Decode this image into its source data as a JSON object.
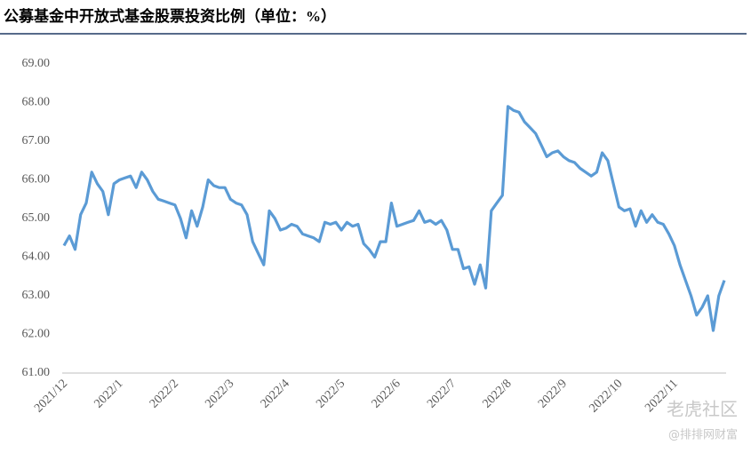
{
  "chart_data": {
    "type": "line",
    "title": "公募基金中开放式基金股票投资比例（单位：%）",
    "categories": [
      "2021/12",
      null,
      null,
      null,
      null,
      null,
      null,
      null,
      null,
      null,
      "2022/1",
      null,
      null,
      null,
      null,
      null,
      null,
      null,
      null,
      null,
      "2022/2",
      null,
      null,
      null,
      null,
      null,
      null,
      null,
      null,
      null,
      "2022/3",
      null,
      null,
      null,
      null,
      null,
      null,
      null,
      null,
      null,
      "2022/4",
      null,
      null,
      null,
      null,
      null,
      null,
      null,
      null,
      null,
      "2022/5",
      null,
      null,
      null,
      null,
      null,
      null,
      null,
      null,
      null,
      "2022/6",
      null,
      null,
      null,
      null,
      null,
      null,
      null,
      null,
      null,
      "2022/7",
      null,
      null,
      null,
      null,
      null,
      null,
      null,
      null,
      null,
      "2022/8",
      null,
      null,
      null,
      null,
      null,
      null,
      null,
      null,
      null,
      "2022/9",
      null,
      null,
      null,
      null,
      null,
      null,
      null,
      null,
      null,
      "2022/10",
      null,
      null,
      null,
      null,
      null,
      null,
      null,
      null,
      null,
      "2022/11",
      null,
      null,
      null,
      null,
      null,
      null,
      null,
      null,
      null
    ],
    "series": [
      {
        "color": "#5b9bd5",
        "values": [
          64.3,
          64.55,
          64.2,
          65.1,
          65.4,
          66.2,
          65.9,
          65.7,
          65.1,
          65.9,
          66.0,
          66.05,
          66.1,
          65.8,
          66.2,
          66.0,
          65.7,
          65.5,
          65.45,
          65.4,
          65.35,
          65.0,
          64.5,
          65.2,
          64.8,
          65.3,
          66.0,
          65.85,
          65.8,
          65.8,
          65.5,
          65.4,
          65.35,
          65.1,
          64.4,
          64.1,
          63.8,
          65.2,
          65.0,
          64.7,
          64.75,
          64.85,
          64.8,
          64.6,
          64.55,
          64.5,
          64.4,
          64.9,
          64.85,
          64.9,
          64.7,
          64.9,
          64.8,
          64.85,
          64.35,
          64.2,
          64.0,
          64.4,
          64.4,
          65.4,
          64.8,
          64.85,
          64.9,
          64.95,
          65.2,
          64.9,
          64.95,
          64.85,
          64.95,
          64.7,
          64.2,
          64.2,
          63.7,
          63.75,
          63.3,
          63.8,
          63.2,
          65.2,
          65.4,
          65.6,
          67.9,
          67.8,
          67.75,
          67.5,
          67.35,
          67.2,
          66.9,
          66.6,
          66.7,
          66.75,
          66.6,
          66.5,
          66.45,
          66.3,
          66.2,
          66.1,
          66.2,
          66.7,
          66.5,
          65.9,
          65.3,
          65.2,
          65.25,
          64.8,
          65.2,
          64.9,
          65.1,
          64.9,
          64.85,
          64.6,
          64.3,
          63.8,
          63.4,
          63.0,
          62.5,
          62.7,
          63.0,
          62.1,
          63.0,
          63.4
        ]
      }
    ],
    "ylim": [
      61,
      69
    ],
    "yticks": [
      {
        "value": 61,
        "label": "61.00"
      },
      {
        "value": 62,
        "label": "62.00"
      },
      {
        "value": 63,
        "label": "63.00"
      },
      {
        "value": 64,
        "label": "64.00"
      },
      {
        "value": 65,
        "label": "65.00"
      },
      {
        "value": 66,
        "label": "66.00"
      },
      {
        "value": 67,
        "label": "67.00"
      },
      {
        "value": 68,
        "label": "68.00"
      },
      {
        "value": 69,
        "label": "69.00"
      }
    ],
    "grid": false
  },
  "watermark": {
    "line1": "老虎社区",
    "line2": "@排排网财富"
  }
}
